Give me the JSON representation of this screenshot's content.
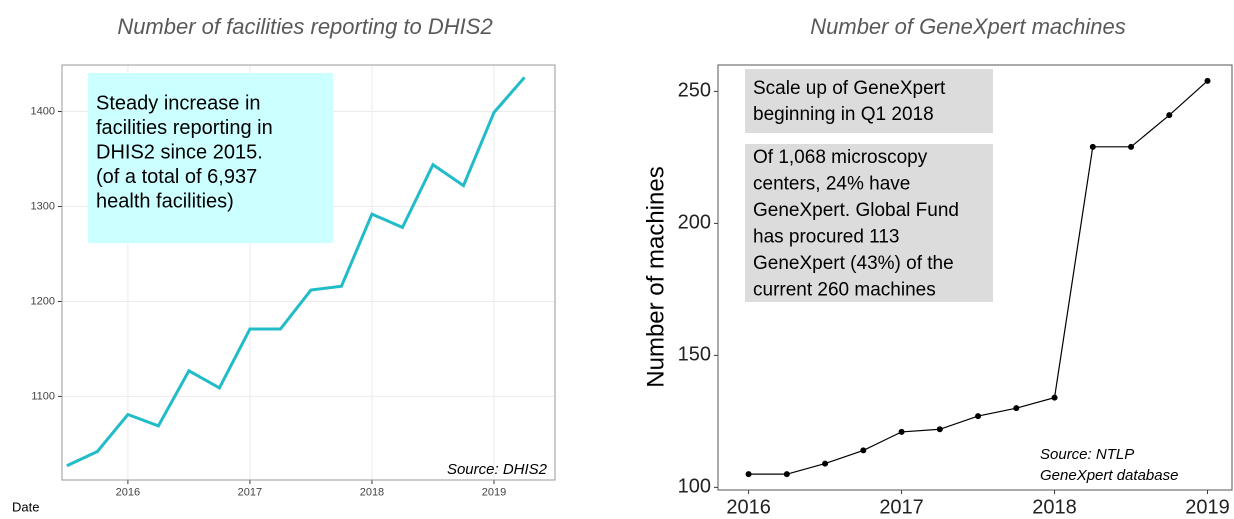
{
  "chart_data": [
    {
      "type": "line",
      "title": "Number of facilities reporting to DHIS2",
      "x_label": "Date",
      "x": [
        2015.5,
        2015.75,
        2016,
        2016.25,
        2016.5,
        2016.75,
        2017,
        2017.25,
        2017.5,
        2017.75,
        2018,
        2018.25,
        2018.5,
        2018.75,
        2019,
        2019.25
      ],
      "series": [
        {
          "color": "#21bcc8",
          "values": [
            1027,
            1042,
            1081,
            1069,
            1127,
            1109,
            1171,
            1171,
            1212,
            1216,
            1292,
            1278,
            1344,
            1322,
            1399,
            1436
          ]
        }
      ],
      "xlim": [
        2015.46,
        2019.5
      ],
      "ylim": [
        1012,
        1449
      ],
      "xticks": [
        2016,
        2017,
        2018,
        2019
      ],
      "yticks": [
        1100,
        1200,
        1300,
        1400
      ],
      "grid": true,
      "markers": false,
      "annotations": [
        {
          "lines": [
            "Steady increase in",
            "facilities reporting in",
            "DHIS2 since 2015.",
            "(of a total of 6,937",
            "health facilities)"
          ]
        }
      ],
      "source": [
        "Source: DHIS2"
      ]
    },
    {
      "type": "line",
      "title": "Number of GeneXpert machines",
      "y_label": "Number of machines",
      "x": [
        2016,
        2016.25,
        2016.5,
        2016.75,
        2017,
        2017.25,
        2017.5,
        2017.75,
        2018,
        2018.25,
        2018.5,
        2018.75,
        2019
      ],
      "series": [
        {
          "color": "#000000",
          "values": [
            105,
            105,
            109,
            114,
            121,
            122,
            127,
            130,
            134,
            229,
            229,
            241,
            254
          ]
        }
      ],
      "xlim": [
        2015.8,
        2019.16
      ],
      "ylim": [
        99,
        260
      ],
      "xticks": [
        2016,
        2017,
        2018,
        2019
      ],
      "yticks": [
        100,
        150,
        200,
        250
      ],
      "grid": false,
      "markers": true,
      "annotations": [
        {
          "lines": [
            "Scale up of GeneXpert",
            "beginning in Q1 2018"
          ]
        },
        {
          "lines": [
            "Of 1,068 microscopy",
            "centers, 24% have",
            "GeneXpert. Global Fund",
            "has procured 113",
            "GeneXpert (43%) of the",
            "current 260 machines"
          ]
        }
      ],
      "source": [
        "Source: NTLP",
        "GeneXpert database"
      ]
    }
  ]
}
